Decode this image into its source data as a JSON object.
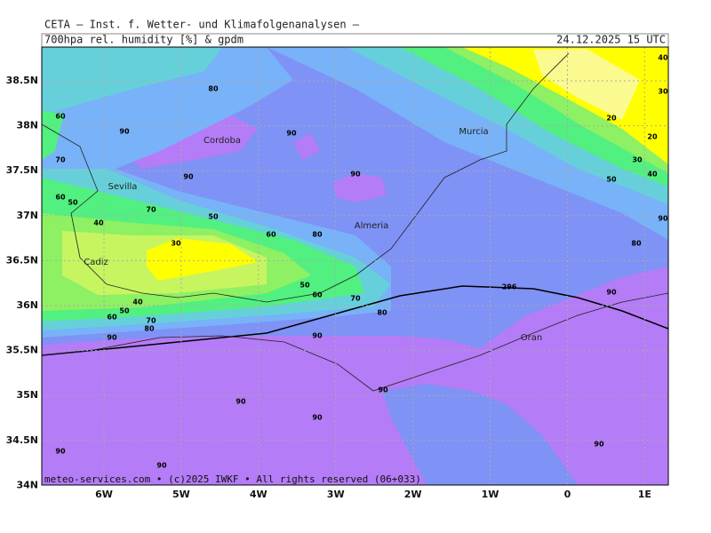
{
  "header": {
    "title": "CETA – Inst. f. Wetter- und Klimafolgenanalysen –",
    "subtitle": "700hpa rel. humidity [%] & gpdm",
    "valid_time": "24.12.2025 15 UTC"
  },
  "map": {
    "lat_ticks": [
      "38.5N",
      "38N",
      "37.5N",
      "37N",
      "36.5N",
      "36N",
      "35.5N",
      "35N",
      "34.5N",
      "34N"
    ],
    "lon_ticks": [
      "6W",
      "5W",
      "4W",
      "3W",
      "2W",
      "1W",
      "0",
      "1E"
    ],
    "cities": [
      "Cordoba",
      "Sevilla",
      "Cadiz",
      "Almeria",
      "Murcia",
      "Oran"
    ],
    "contour_labels": [
      80,
      90,
      90,
      90,
      90,
      60,
      70,
      60,
      50,
      40,
      70,
      50,
      60,
      80,
      30,
      50,
      60,
      70,
      80,
      40,
      50,
      60,
      70,
      80,
      90,
      90,
      90,
      90,
      90,
      90,
      90,
      90,
      90,
      80,
      90,
      50,
      40,
      30,
      20,
      20,
      30,
      40,
      296
    ]
  },
  "footer": "meteo-services.com • (c)2025 IWKF • All rights reserved (06+033)"
}
